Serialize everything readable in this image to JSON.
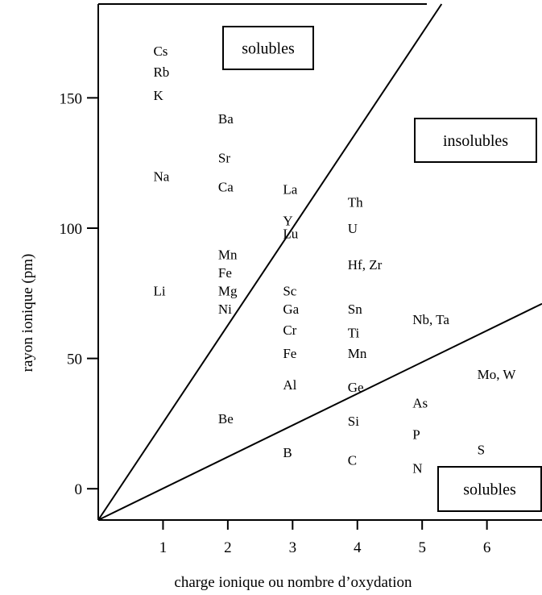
{
  "chart_data": {
    "type": "scatter",
    "xlabel": "charge ionique ou nombre d’oxydation",
    "ylabel": "rayon ionique (pm)",
    "xlim": [
      0,
      6.85
    ],
    "ylim": [
      -12,
      186
    ],
    "x_ticks": [
      1,
      2,
      3,
      4,
      5,
      6
    ],
    "y_ticks": [
      0,
      50,
      100,
      150
    ],
    "grid": false,
    "points": [
      {
        "label": "Cs",
        "x": 1,
        "y": 168
      },
      {
        "label": "Rb",
        "x": 1,
        "y": 160
      },
      {
        "label": "K",
        "x": 1,
        "y": 151
      },
      {
        "label": "Na",
        "x": 1,
        "y": 120
      },
      {
        "label": "Li",
        "x": 1,
        "y": 76
      },
      {
        "label": "Ba",
        "x": 2,
        "y": 142
      },
      {
        "label": "Sr",
        "x": 2,
        "y": 127
      },
      {
        "label": "Ca",
        "x": 2,
        "y": 116
      },
      {
        "label": "Mn",
        "x": 2,
        "y": 90
      },
      {
        "label": "Fe",
        "x": 2,
        "y": 83
      },
      {
        "label": "Mg",
        "x": 2,
        "y": 76
      },
      {
        "label": "Ni",
        "x": 2,
        "y": 69
      },
      {
        "label": "Be",
        "x": 2,
        "y": 27
      },
      {
        "label": "La",
        "x": 3,
        "y": 115
      },
      {
        "label": "Y",
        "x": 3,
        "y": 103
      },
      {
        "label": "Lu",
        "x": 3,
        "y": 98
      },
      {
        "label": "Sc",
        "x": 3,
        "y": 76
      },
      {
        "label": "Ga",
        "x": 3,
        "y": 69
      },
      {
        "label": "Cr",
        "x": 3,
        "y": 61
      },
      {
        "label": "Fe",
        "x": 3,
        "y": 52
      },
      {
        "label": "Al",
        "x": 3,
        "y": 40
      },
      {
        "label": "B",
        "x": 3,
        "y": 14
      },
      {
        "label": "Th",
        "x": 4,
        "y": 110
      },
      {
        "label": "U",
        "x": 4,
        "y": 100
      },
      {
        "label": "Hf, Zr",
        "x": 4,
        "y": 86
      },
      {
        "label": "Sn",
        "x": 4,
        "y": 69
      },
      {
        "label": "Ti",
        "x": 4,
        "y": 60
      },
      {
        "label": "Mn",
        "x": 4,
        "y": 52
      },
      {
        "label": "Ge",
        "x": 4,
        "y": 39
      },
      {
        "label": "Si",
        "x": 4,
        "y": 26
      },
      {
        "label": "C",
        "x": 4,
        "y": 11
      },
      {
        "label": "Nb, Ta",
        "x": 5,
        "y": 65
      },
      {
        "label": "As",
        "x": 5,
        "y": 33
      },
      {
        "label": "P",
        "x": 5,
        "y": 21
      },
      {
        "label": "N",
        "x": 5,
        "y": 8
      },
      {
        "label": "Mo, W",
        "x": 6,
        "y": 44
      },
      {
        "label": "S",
        "x": 6,
        "y": 15
      }
    ],
    "boundary_lines": [
      {
        "from": [
          0,
          -12
        ],
        "to": [
          5.3,
          186
        ]
      },
      {
        "from": [
          0,
          -12
        ],
        "to": [
          6.85,
          71
        ]
      }
    ],
    "annotations": [
      "solubles",
      "insolubles",
      "solubles"
    ]
  }
}
